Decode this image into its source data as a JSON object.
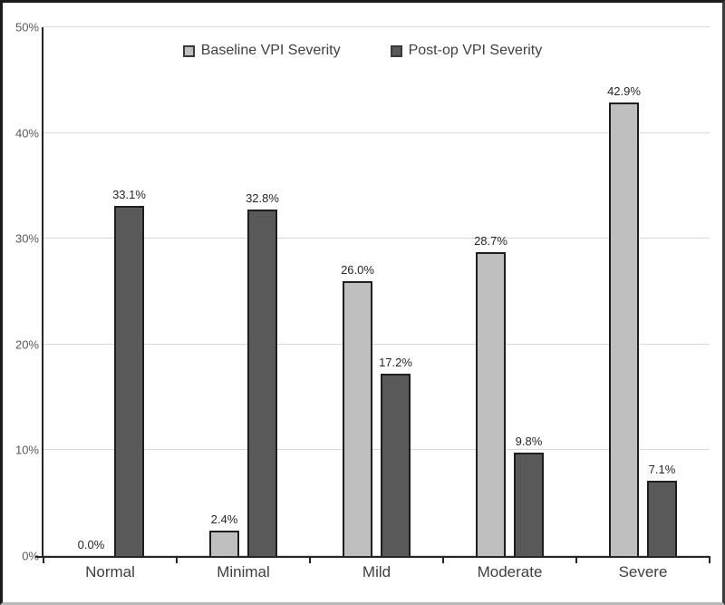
{
  "chart_data": {
    "type": "bar",
    "title": "",
    "xlabel": "",
    "ylabel": "",
    "categories": [
      "Normal",
      "Minimal",
      "Mild",
      "Moderate",
      "Severe"
    ],
    "series": [
      {
        "name": "Baseline VPI Severity",
        "color": "#bfbfbf",
        "values": [
          0.0,
          2.4,
          26.0,
          28.7,
          42.9
        ],
        "labels": [
          "0.0%",
          "2.4%",
          "26.0%",
          "28.7%",
          "42.9%"
        ]
      },
      {
        "name": "Post-op VPI Severity",
        "color": "#595959",
        "values": [
          33.1,
          32.8,
          17.2,
          9.8,
          7.1
        ],
        "labels": [
          "33.1%",
          "32.8%",
          "17.2%",
          "9.8%",
          "7.1%"
        ]
      }
    ],
    "ylim": [
      0,
      50
    ],
    "y_ticks": [
      {
        "value": 0,
        "label": "0%"
      },
      {
        "value": 10,
        "label": "10%"
      },
      {
        "value": 20,
        "label": "20%"
      },
      {
        "value": 30,
        "label": "30%"
      },
      {
        "value": 40,
        "label": "40%"
      },
      {
        "value": 50,
        "label": "50%"
      }
    ],
    "grid": true,
    "legend_position": "top-center",
    "colors": {
      "gridline": "#d9d9d9",
      "axis": "#262626",
      "bar_border": "#1f1f1f",
      "tick_text": "#595959",
      "label_text": "#404040",
      "value_text": "#262626"
    }
  }
}
